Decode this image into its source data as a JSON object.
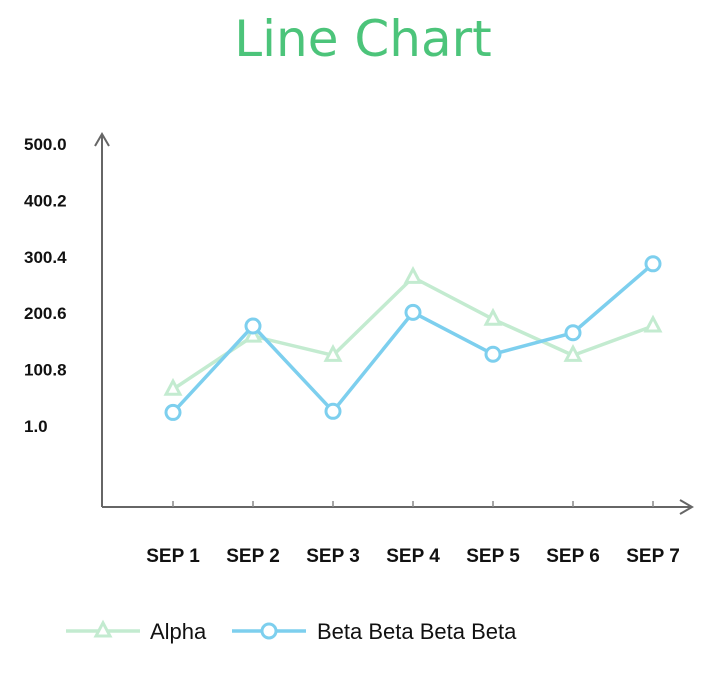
{
  "chart_data": {
    "type": "line",
    "title": "Line Chart",
    "categories": [
      "SEP 1",
      "SEP 2",
      "SEP 3",
      "SEP 4",
      "SEP 5",
      "SEP 6",
      "SEP 7"
    ],
    "yticks": [
      "1.0",
      "100.8",
      "200.6",
      "300.4",
      "400.2",
      "500.0"
    ],
    "ylim": [
      1.0,
      500.0
    ],
    "series": [
      {
        "name": "Alpha",
        "marker": "triangle",
        "color": "#c3ebd0",
        "values": [
          66,
          160,
          126,
          264,
          190,
          126,
          178
        ]
      },
      {
        "name": "Beta Beta Beta Beta",
        "marker": "circle",
        "color": "#7dcfee",
        "values": [
          25,
          178,
          27,
          202,
          128,
          166,
          288
        ]
      }
    ],
    "legend_position": "bottom-left",
    "grid": false
  }
}
